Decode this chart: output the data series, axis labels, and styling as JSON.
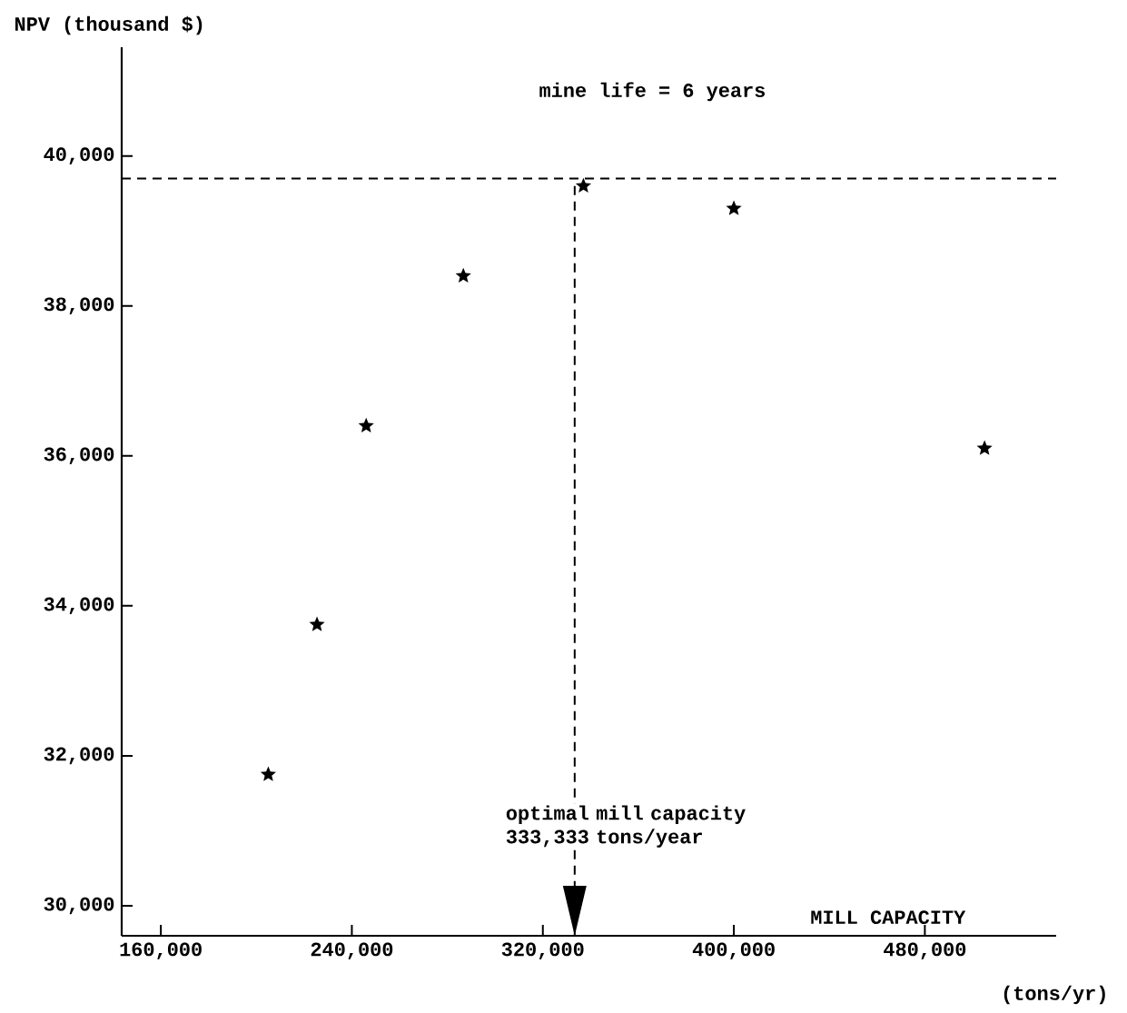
{
  "chart_data": {
    "type": "scatter",
    "xlabel": "MILL CAPACITY",
    "ylabel": "NPV (thousand $)",
    "annotations": [
      "mine life = 6 years",
      "(tons/yr)"
    ],
    "x": [
      205000,
      225400,
      246000,
      286700,
      337000,
      400000,
      505000
    ],
    "values": [
      31750,
      33750,
      36400,
      38400,
      39600,
      39300,
      36100
    ],
    "color": "#000000",
    "marker": "star",
    "xlim": [
      143600,
      535000
    ],
    "ylim": [
      29600,
      41450
    ],
    "xticks": [
      {
        "value": 160000,
        "label": "160,000"
      },
      {
        "value": 240000,
        "label": "240,000"
      },
      {
        "value": 320000,
        "label": "320,000"
      },
      {
        "value": 400000,
        "label": "400,000"
      },
      {
        "value": 480000,
        "label": "480,000"
      }
    ],
    "yticks": [
      {
        "value": 30000,
        "label": "30,000"
      },
      {
        "value": 32000,
        "label": "32,000"
      },
      {
        "value": 34000,
        "label": "34,000"
      },
      {
        "value": 36000,
        "label": "36,000"
      },
      {
        "value": 38000,
        "label": "38,000"
      },
      {
        "value": 40000,
        "label": "40,000"
      }
    ],
    "ref_lines": [
      {
        "axis": "y",
        "value": 39700,
        "line_style": "dashed"
      },
      {
        "axis": "x",
        "value": 333333,
        "label": "optimal mill capacity 333,333 tons/year",
        "line_style": "dashed"
      }
    ]
  }
}
